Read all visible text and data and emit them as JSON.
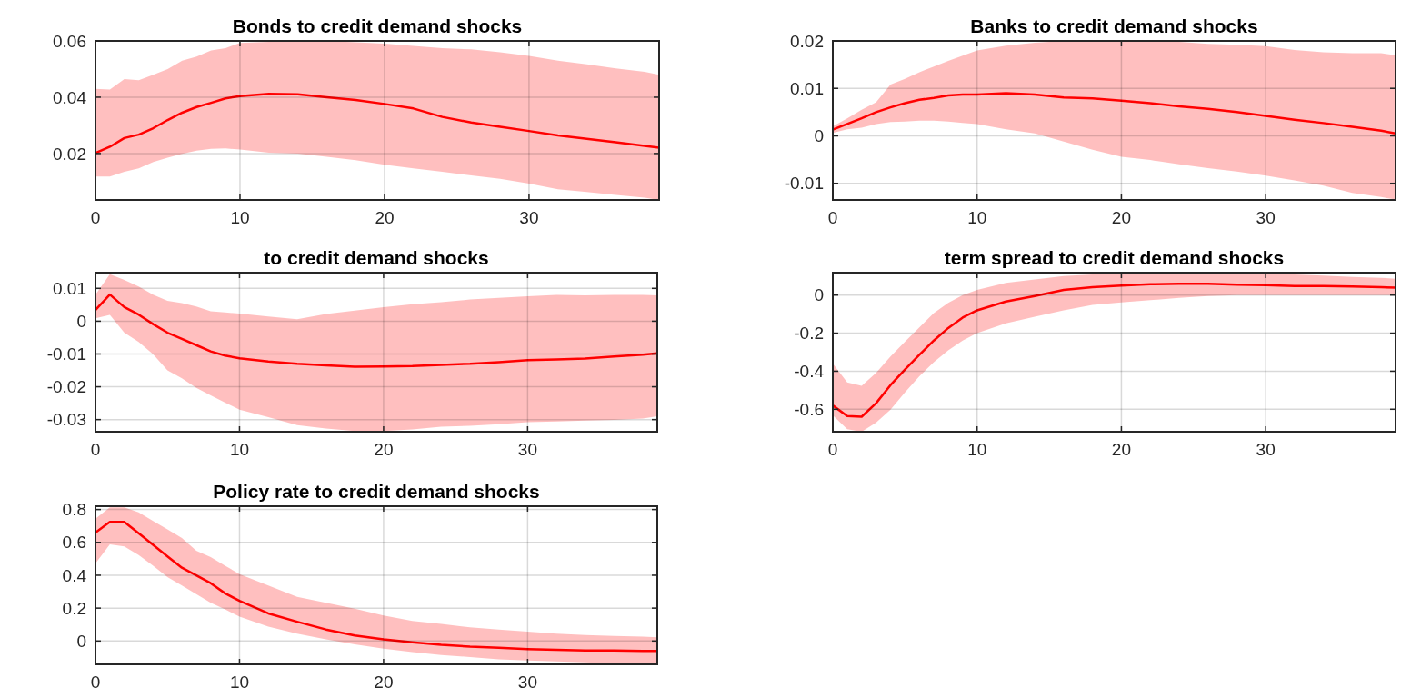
{
  "chart_data": [
    {
      "type": "line",
      "title": "Bonds to credit demand shocks",
      "xlim": [
        0,
        39
      ],
      "xticks": [
        0,
        10,
        20,
        30
      ],
      "ylim": [
        0.0035,
        0.06
      ],
      "yticks": [
        0.02,
        0.04,
        0.06
      ],
      "grid": true,
      "series": [
        {
          "color": "#ff0000",
          "x": [
            0,
            1,
            2,
            3,
            4,
            5,
            6,
            7,
            8,
            9,
            10,
            12,
            14,
            16,
            18,
            20,
            22,
            24,
            26,
            28,
            30,
            32,
            34,
            36,
            38,
            39
          ],
          "values": [
            0.0202,
            0.0224,
            0.0255,
            0.0267,
            0.029,
            0.0319,
            0.0345,
            0.0365,
            0.038,
            0.0396,
            0.0404,
            0.0412,
            0.041,
            0.04,
            0.039,
            0.0376,
            0.036,
            0.033,
            0.031,
            0.0295,
            0.028,
            0.0264,
            0.0252,
            0.024,
            0.0227,
            0.0221
          ],
          "upper": [
            0.043,
            0.0427,
            0.0464,
            0.046,
            0.048,
            0.05,
            0.053,
            0.0544,
            0.0566,
            0.0574,
            0.0593,
            0.0597,
            0.06,
            0.06,
            0.0595,
            0.059,
            0.0582,
            0.0574,
            0.057,
            0.056,
            0.0547,
            0.053,
            0.0517,
            0.0502,
            0.049,
            0.048
          ],
          "lower": [
            0.0118,
            0.0118,
            0.0135,
            0.0147,
            0.017,
            0.0185,
            0.0199,
            0.021,
            0.0217,
            0.0218,
            0.0214,
            0.0203,
            0.02,
            0.0188,
            0.0176,
            0.016,
            0.0147,
            0.0135,
            0.0122,
            0.011,
            0.0093,
            0.0073,
            0.0063,
            0.0053,
            0.0043,
            0.0035
          ]
        }
      ]
    },
    {
      "type": "line",
      "title": "Banks to credit demand shocks",
      "xlim": [
        0,
        39
      ],
      "xticks": [
        0,
        10,
        20,
        30
      ],
      "ylim": [
        -0.0135,
        0.02
      ],
      "yticks": [
        -0.01,
        0,
        0.01,
        0.02
      ],
      "grid": true,
      "series": [
        {
          "color": "#ff0000",
          "x": [
            0,
            1,
            2,
            3,
            4,
            5,
            6,
            7,
            8,
            9,
            10,
            12,
            14,
            16,
            18,
            20,
            22,
            24,
            26,
            28,
            30,
            32,
            34,
            36,
            38,
            39
          ],
          "values": [
            0.0013,
            0.0025,
            0.0037,
            0.005,
            0.006,
            0.0069,
            0.0076,
            0.008,
            0.0085,
            0.0087,
            0.0087,
            0.009,
            0.0087,
            0.0081,
            0.0079,
            0.0074,
            0.0069,
            0.0062,
            0.0057,
            0.005,
            0.0042,
            0.0034,
            0.0027,
            0.0019,
            0.0011,
            0.0005
          ],
          "upper": [
            0.002,
            0.0037,
            0.0055,
            0.0071,
            0.0108,
            0.012,
            0.0134,
            0.0146,
            0.0158,
            0.0169,
            0.018,
            0.019,
            0.0196,
            0.02,
            0.02,
            0.02,
            0.02,
            0.0198,
            0.0194,
            0.0192,
            0.0189,
            0.0181,
            0.0176,
            0.0174,
            0.0174,
            0.017
          ],
          "lower": [
            0.0006,
            0.0014,
            0.0017,
            0.0025,
            0.0029,
            0.003,
            0.0032,
            0.0032,
            0.003,
            0.0027,
            0.0025,
            0.0014,
            0.0005,
            -0.0012,
            -0.0029,
            -0.0044,
            -0.0051,
            -0.006,
            -0.0068,
            -0.0075,
            -0.0084,
            -0.0094,
            -0.0105,
            -0.012,
            -0.0129,
            -0.0134
          ]
        }
      ]
    },
    {
      "type": "line",
      "title": "to credit demand shocks",
      "xlim": [
        0,
        39
      ],
      "xticks": [
        0,
        10,
        20,
        30
      ],
      "ylim": [
        -0.0337,
        0.0148
      ],
      "yticks": [
        -0.03,
        -0.02,
        -0.01,
        0,
        0.01
      ],
      "grid": true,
      "series": [
        {
          "color": "#ff0000",
          "x": [
            0,
            1,
            2,
            3,
            4,
            5,
            6,
            7,
            8,
            9,
            10,
            12,
            14,
            16,
            18,
            20,
            22,
            24,
            26,
            28,
            30,
            32,
            34,
            36,
            38,
            39
          ],
          "values": [
            0.0034,
            0.0081,
            0.0043,
            0.002,
            -0.0009,
            -0.0035,
            -0.0054,
            -0.0073,
            -0.0092,
            -0.0105,
            -0.0113,
            -0.0123,
            -0.013,
            -0.0135,
            -0.0139,
            -0.0138,
            -0.0137,
            -0.0133,
            -0.013,
            -0.0125,
            -0.0119,
            -0.0117,
            -0.0114,
            -0.0108,
            -0.0102,
            -0.0098
          ],
          "upper": [
            0.0081,
            0.0143,
            0.0126,
            0.0106,
            0.0081,
            0.0062,
            0.0055,
            0.0045,
            0.003,
            0.0027,
            0.0023,
            0.0014,
            0.0006,
            0.0022,
            0.0032,
            0.0043,
            0.0052,
            0.0058,
            0.0066,
            0.0071,
            0.0076,
            0.008,
            0.0079,
            0.008,
            0.008,
            0.0079
          ],
          "lower": [
            0.0009,
            0.0019,
            -0.0035,
            -0.0063,
            -0.0101,
            -0.015,
            -0.0174,
            -0.0203,
            -0.0226,
            -0.0248,
            -0.027,
            -0.0293,
            -0.0317,
            -0.0327,
            -0.0335,
            -0.0335,
            -0.033,
            -0.0322,
            -0.0319,
            -0.0314,
            -0.0308,
            -0.0306,
            -0.0303,
            -0.0301,
            -0.0297,
            -0.029
          ]
        }
      ]
    },
    {
      "type": "line",
      "title": "term spread to credit demand shocks",
      "xlim": [
        0,
        39
      ],
      "xticks": [
        0,
        10,
        20,
        30
      ],
      "ylim": [
        -0.718,
        0.118
      ],
      "yticks": [
        -0.6,
        -0.4,
        -0.2,
        0
      ],
      "grid": true,
      "series": [
        {
          "color": "#ff0000",
          "x": [
            0,
            1,
            2,
            3,
            4,
            5,
            6,
            7,
            8,
            9,
            10,
            12,
            14,
            16,
            18,
            20,
            22,
            24,
            26,
            28,
            30,
            32,
            34,
            36,
            38,
            39
          ],
          "values": [
            -0.58,
            -0.636,
            -0.639,
            -0.568,
            -0.473,
            -0.391,
            -0.314,
            -0.239,
            -0.173,
            -0.118,
            -0.08,
            -0.034,
            -0.005,
            0.027,
            0.041,
            0.05,
            0.057,
            0.059,
            0.059,
            0.055,
            0.052,
            0.048,
            0.048,
            0.045,
            0.041,
            0.039
          ],
          "upper": [
            -0.36,
            -0.459,
            -0.477,
            -0.409,
            -0.323,
            -0.245,
            -0.17,
            -0.095,
            -0.041,
            0,
            0.027,
            0.064,
            0.082,
            0.1,
            0.109,
            0.114,
            0.118,
            0.118,
            0.118,
            0.118,
            0.114,
            0.109,
            0.102,
            0.095,
            0.091,
            0.086
          ],
          "lower": [
            -0.632,
            -0.705,
            -0.718,
            -0.67,
            -0.602,
            -0.511,
            -0.427,
            -0.352,
            -0.291,
            -0.239,
            -0.2,
            -0.148,
            -0.114,
            -0.08,
            -0.052,
            -0.039,
            -0.027,
            -0.014,
            -0.005,
            0,
            0,
            0,
            0,
            0,
            0,
            0
          ]
        }
      ]
    },
    {
      "type": "line",
      "title": "Policy rate to credit demand shocks",
      "xlim": [
        0,
        39
      ],
      "xticks": [
        0,
        10,
        20,
        30
      ],
      "ylim": [
        -0.142,
        0.82
      ],
      "yticks": [
        0,
        0.2,
        0.4,
        0.6,
        0.8
      ],
      "grid": true,
      "series": [
        {
          "color": "#ff0000",
          "x": [
            0,
            1,
            2,
            3,
            4,
            5,
            6,
            7,
            8,
            9,
            10,
            12,
            14,
            16,
            18,
            20,
            22,
            24,
            26,
            28,
            30,
            32,
            34,
            36,
            38,
            39
          ],
          "values": [
            0.66,
            0.725,
            0.725,
            0.655,
            0.585,
            0.515,
            0.446,
            0.399,
            0.352,
            0.29,
            0.244,
            0.168,
            0.117,
            0.07,
            0.034,
            0.01,
            -0.008,
            -0.023,
            -0.034,
            -0.041,
            -0.049,
            -0.054,
            -0.057,
            -0.057,
            -0.06,
            -0.06
          ],
          "upper": [
            0.744,
            0.813,
            0.813,
            0.782,
            0.73,
            0.679,
            0.627,
            0.549,
            0.51,
            0.458,
            0.407,
            0.337,
            0.269,
            0.233,
            0.197,
            0.155,
            0.122,
            0.104,
            0.083,
            0.07,
            0.057,
            0.044,
            0.036,
            0.031,
            0.026,
            0.023
          ],
          "lower": [
            0.472,
            0.588,
            0.575,
            0.523,
            0.458,
            0.389,
            0.337,
            0.285,
            0.233,
            0.192,
            0.148,
            0.088,
            0.044,
            0.01,
            -0.021,
            -0.047,
            -0.067,
            -0.085,
            -0.098,
            -0.111,
            -0.119,
            -0.124,
            -0.129,
            -0.137,
            -0.14,
            -0.142
          ]
        }
      ]
    }
  ]
}
